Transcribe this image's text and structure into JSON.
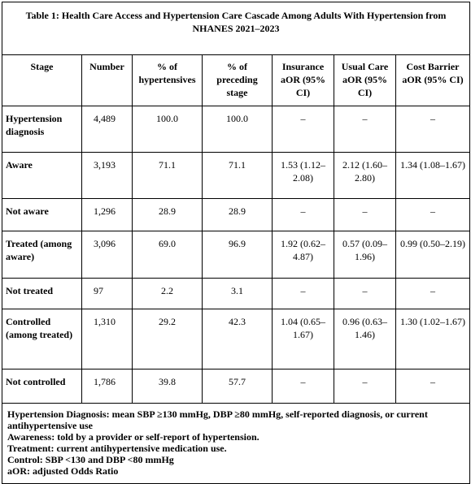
{
  "title": "Table 1: Health Care Access and Hypertension Care Cascade Among Adults With Hypertension from NHANES 2021–2023",
  "headers": {
    "stage": "Stage",
    "number": "Number",
    "pct_hyp": "% of hypertensives",
    "pct_prev": "% of preceding stage",
    "insurance": "Insurance aOR (95% CI)",
    "usual_care": "Usual Care aOR (95% CI)",
    "cost_barrier": "Cost Barrier aOR (95% CI)"
  },
  "rows": [
    {
      "stage": "Hypertension diagnosis",
      "number": "4,489",
      "pct_hyp": "100.0",
      "pct_prev": "100.0",
      "insurance": "–",
      "usual_care": "–",
      "cost_barrier": "–"
    },
    {
      "stage": "Aware",
      "number": "3,193",
      "pct_hyp": "71.1",
      "pct_prev": "71.1",
      "insurance": "1.53 (1.12–2.08)",
      "usual_care": "2.12 (1.60–2.80)",
      "cost_barrier": "1.34 (1.08–1.67)"
    },
    {
      "stage": "Not aware",
      "number": "1,296",
      "pct_hyp": "28.9",
      "pct_prev": "28.9",
      "insurance": "–",
      "usual_care": "–",
      "cost_barrier": "–"
    },
    {
      "stage": "Treated (among aware)",
      "number": "3,096",
      "pct_hyp": "69.0",
      "pct_prev": "96.9",
      "insurance": "1.92 (0.62–4.87)",
      "usual_care": "0.57 (0.09–1.96)",
      "cost_barrier": "0.99 (0.50–2.19)"
    },
    {
      "stage": "Not treated",
      "number": "97",
      "pct_hyp": "2.2",
      "pct_prev": "3.1",
      "insurance": "–",
      "usual_care": "–",
      "cost_barrier": "–"
    },
    {
      "stage": "Controlled (among treated)",
      "number": "1,310",
      "pct_hyp": "29.2",
      "pct_prev": "42.3",
      "insurance": "1.04 (0.65–1.67)",
      "usual_care": "0.96 (0.63–1.46)",
      "cost_barrier": "1.30 (1.02–1.67)"
    },
    {
      "stage": "Not controlled",
      "number": "1,786",
      "pct_hyp": "39.8",
      "pct_prev": "57.7",
      "insurance": "–",
      "usual_care": "–",
      "cost_barrier": "–"
    }
  ],
  "notes": [
    "Hypertension Diagnosis: mean SBP ≥130 mmHg, DBP ≥80 mmHg, self-reported diagnosis, or current antihypertensive use",
    "Awareness: told by a provider or self-report of hypertension.",
    "Treatment: current antihypertensive medication use.",
    "Control: SBP <130 and DBP <80 mmHg",
    "aOR: adjusted Odds Ratio"
  ]
}
